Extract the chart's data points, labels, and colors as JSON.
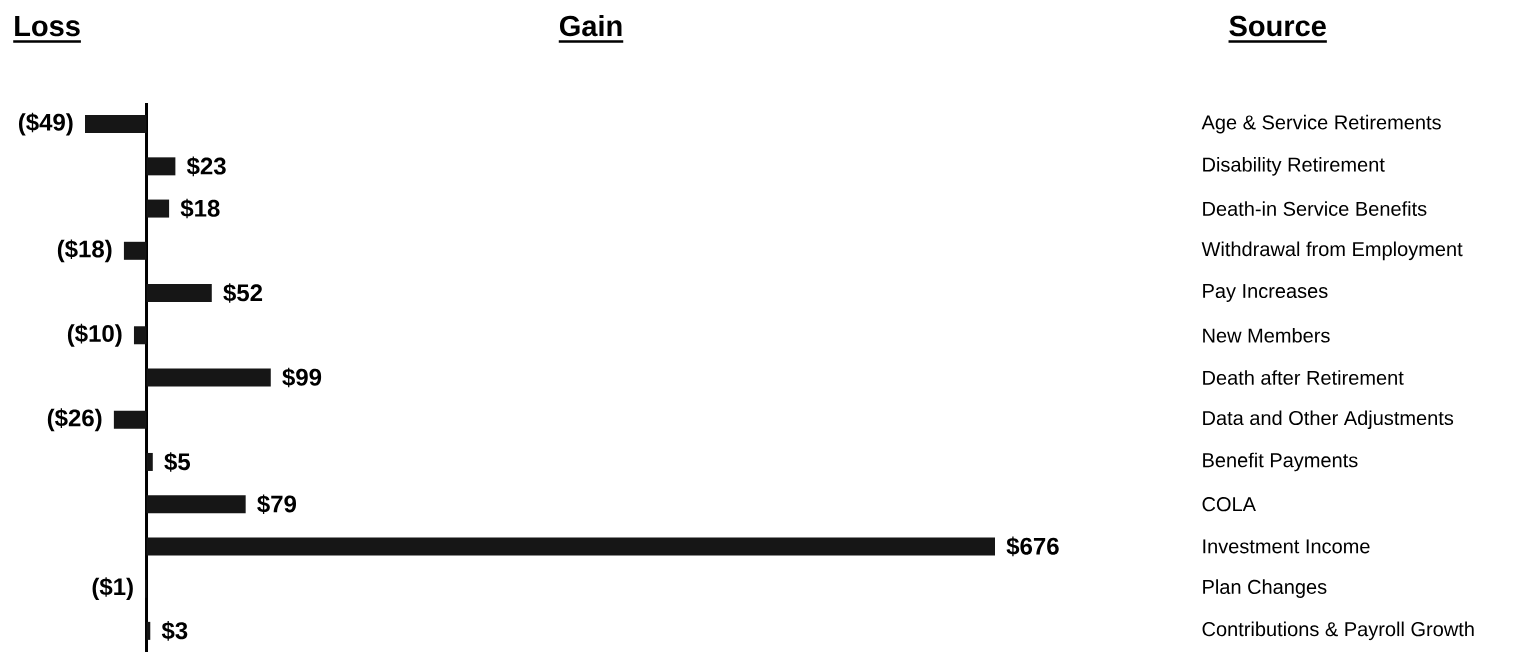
{
  "chart_data": {
    "type": "bar",
    "orientation": "horizontal",
    "ylabel": "Source",
    "annotations": [
      "Loss",
      "Gain"
    ],
    "categories": [
      "Age & Service Retirements",
      "Disability Retirement",
      "Death-in Service Benefits",
      "Withdrawal from Employment",
      "Pay Increases",
      "New Members",
      "Death after Retirement",
      "Data and Other Adjustments",
      "Benefit Payments",
      "COLA",
      "Investment Income",
      "Plan Changes",
      "Contributions & Payroll Growth"
    ],
    "values": [
      -49,
      23,
      18,
      -18,
      52,
      -10,
      99,
      -26,
      5,
      79,
      676,
      -1,
      3
    ],
    "value_labels": [
      "($49)",
      "$23",
      "$18",
      "($18)",
      "$52",
      "($10)",
      "$99",
      "($26)",
      "$5",
      "$79",
      "$676",
      "($1)",
      "$3"
    ],
    "color": "#161616",
    "tick_labels": "y"
  }
}
